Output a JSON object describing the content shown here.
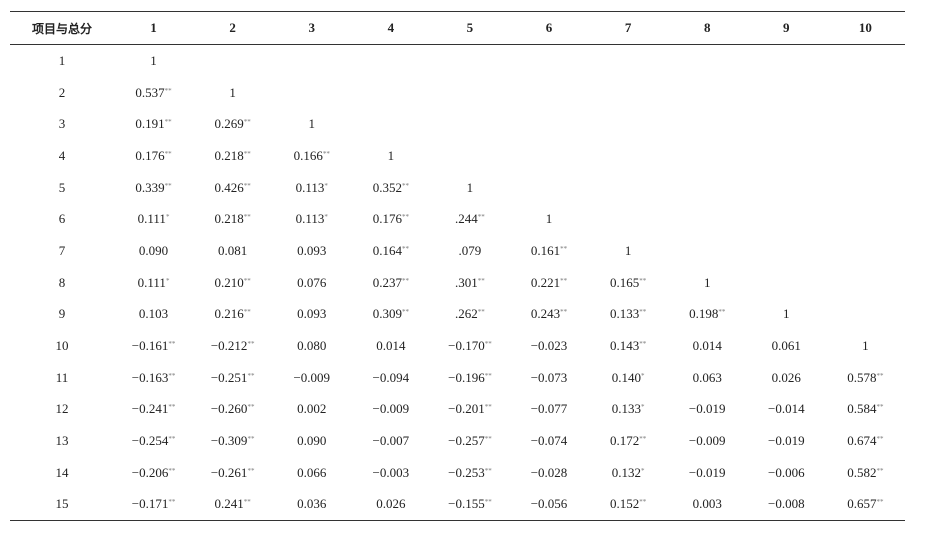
{
  "table": {
    "header": [
      "项目与总分",
      "1",
      "2",
      "3",
      "4",
      "5",
      "6",
      "7",
      "8",
      "9",
      "10"
    ],
    "rows": [
      {
        "label": "1",
        "cells": [
          "1"
        ]
      },
      {
        "label": "2",
        "cells": [
          {
            "v": "0.537",
            "s": "**"
          },
          "1"
        ]
      },
      {
        "label": "3",
        "cells": [
          {
            "v": "0.191",
            "s": "**"
          },
          {
            "v": "0.269",
            "s": "**"
          },
          "1"
        ]
      },
      {
        "label": "4",
        "cells": [
          {
            "v": "0.176",
            "s": "**"
          },
          {
            "v": "0.218",
            "s": "**"
          },
          {
            "v": "0.166",
            "s": "**"
          },
          "1"
        ]
      },
      {
        "label": "5",
        "cells": [
          {
            "v": "0.339",
            "s": "**"
          },
          {
            "v": "0.426",
            "s": "**"
          },
          {
            "v": "0.113",
            "s": "*"
          },
          {
            "v": "0.352",
            "s": "**"
          },
          "1"
        ]
      },
      {
        "label": "6",
        "cells": [
          {
            "v": "0.111",
            "s": "*"
          },
          {
            "v": "0.218",
            "s": "**"
          },
          {
            "v": "0.113",
            "s": "*"
          },
          {
            "v": "0.176",
            "s": "**"
          },
          {
            "v": ".244",
            "s": "**"
          },
          "1"
        ]
      },
      {
        "label": "7",
        "cells": [
          "0.090",
          "0.081",
          "0.093",
          {
            "v": "0.164",
            "s": "**"
          },
          ".079",
          {
            "v": "0.161",
            "s": "**"
          },
          "1"
        ]
      },
      {
        "label": "8",
        "cells": [
          {
            "v": "0.111",
            "s": "*"
          },
          {
            "v": "0.210",
            "s": "**"
          },
          "0.076",
          {
            "v": "0.237",
            "s": "**"
          },
          {
            "v": ".301",
            "s": "**"
          },
          {
            "v": "0.221",
            "s": "**"
          },
          {
            "v": "0.165",
            "s": "**"
          },
          "1"
        ]
      },
      {
        "label": "9",
        "cells": [
          "0.103",
          {
            "v": "0.216",
            "s": "**"
          },
          "0.093",
          {
            "v": "0.309",
            "s": "**"
          },
          {
            "v": ".262",
            "s": "**"
          },
          {
            "v": "0.243",
            "s": "**"
          },
          {
            "v": "0.133",
            "s": "**"
          },
          {
            "v": "0.198",
            "s": "**"
          },
          "1"
        ]
      },
      {
        "label": "10",
        "cells": [
          {
            "v": "−0.161",
            "s": "**"
          },
          {
            "v": "−0.212",
            "s": "**"
          },
          "0.080",
          "0.014",
          {
            "v": "−0.170",
            "s": "**"
          },
          "−0.023",
          {
            "v": "0.143",
            "s": "**"
          },
          "0.014",
          "0.061",
          "1"
        ]
      },
      {
        "label": "11",
        "cells": [
          {
            "v": "−0.163",
            "s": "**"
          },
          {
            "v": "−0.251",
            "s": "**"
          },
          "−0.009",
          "−0.094",
          {
            "v": "−0.196",
            "s": "**"
          },
          "−0.073",
          {
            "v": "0.140",
            "s": "*"
          },
          "0.063",
          "0.026",
          {
            "v": "0.578",
            "s": "**"
          }
        ]
      },
      {
        "label": "12",
        "cells": [
          {
            "v": "−0.241",
            "s": "**"
          },
          {
            "v": "−0.260",
            "s": "**"
          },
          "0.002",
          "−0.009",
          {
            "v": "−0.201",
            "s": "**"
          },
          "−0.077",
          {
            "v": "0.133",
            "s": "*"
          },
          "−0.019",
          "−0.014",
          {
            "v": "0.584",
            "s": "**"
          }
        ]
      },
      {
        "label": "13",
        "cells": [
          {
            "v": "−0.254",
            "s": "**"
          },
          {
            "v": "−0.309",
            "s": "**"
          },
          "0.090",
          "−0.007",
          {
            "v": "−0.257",
            "s": "**"
          },
          "−0.074",
          {
            "v": "0.172",
            "s": "**"
          },
          "−0.009",
          "−0.019",
          {
            "v": "0.674",
            "s": "**"
          }
        ]
      },
      {
        "label": "14",
        "cells": [
          {
            "v": "−0.206",
            "s": "**"
          },
          {
            "v": "−0.261",
            "s": "**"
          },
          "0.066",
          "−0.003",
          {
            "v": "−0.253",
            "s": "**"
          },
          "−0.028",
          {
            "v": "0.132",
            "s": "*"
          },
          "−0.019",
          "−0.006",
          {
            "v": "0.582",
            "s": "**"
          }
        ]
      },
      {
        "label": "15",
        "cells": [
          {
            "v": "−0.171",
            "s": "**"
          },
          {
            "v": "0.241",
            "s": "**"
          },
          "0.036",
          "0.026",
          {
            "v": "−0.155",
            "s": "**"
          },
          "−0.056",
          {
            "v": "0.152",
            "s": "**"
          },
          "0.003",
          "−0.008",
          {
            "v": "0.657",
            "s": "**"
          }
        ]
      }
    ]
  }
}
